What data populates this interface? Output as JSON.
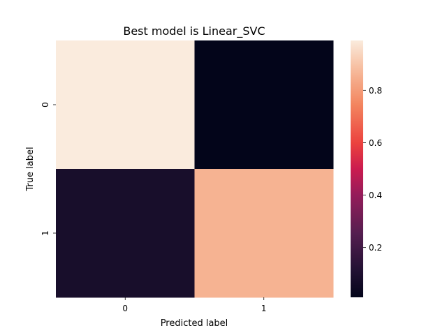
{
  "chart_data": {
    "type": "heatmap",
    "title": "Best model is Linear_SVC",
    "xlabel": "Predicted label",
    "ylabel": "True label",
    "x_categories": [
      "0",
      "1"
    ],
    "y_categories": [
      "0",
      "1"
    ],
    "values": [
      [
        0.99,
        0.01
      ],
      [
        0.08,
        0.86
      ]
    ],
    "colorbar": {
      "ticks": [
        0.2,
        0.4,
        0.6,
        0.8
      ],
      "tick_labels": [
        "0.2",
        "0.4",
        "0.6",
        "0.8"
      ],
      "range": [
        0.01,
        0.99
      ]
    },
    "colormap": "rocket",
    "grid": false
  }
}
